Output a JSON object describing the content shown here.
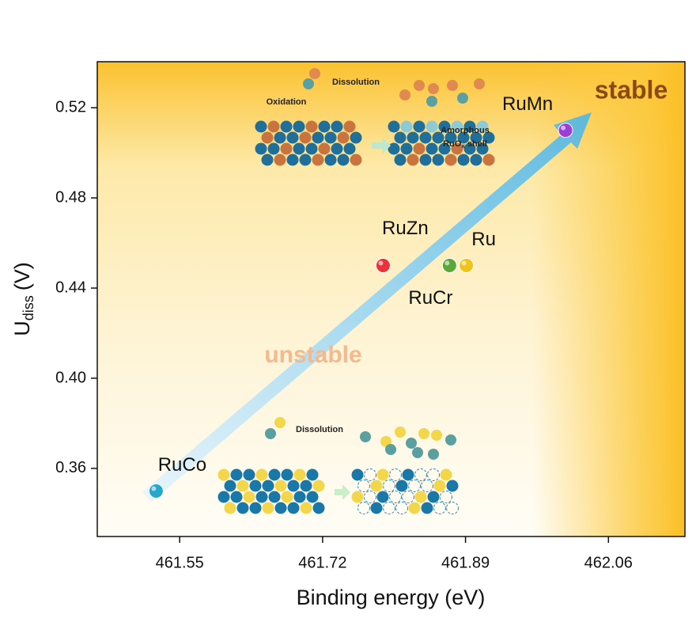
{
  "chart_data": {
    "type": "scatter",
    "xlabel": "Binding energy (eV)",
    "ylabel": "U",
    "ylabel_sub": "diss",
    "ylabel_unit": "(V)",
    "xlim": [
      461.452,
      462.151
    ],
    "ylim": [
      0.3298,
      0.5404
    ],
    "xticks": [
      461.55,
      461.72,
      461.89,
      462.06
    ],
    "yticks": [
      {
        "value": 0.36,
        "label": "0.36"
      },
      {
        "value": 0.4,
        "label": "0.40"
      },
      {
        "value": 0.44,
        "label": "0.44"
      },
      {
        "value": 0.48,
        "label": "0.48"
      },
      {
        "value": 0.52,
        "label": "0.52"
      }
    ],
    "series": [
      {
        "name": "RuCo",
        "color": "#27a6cc",
        "x": [
          461.522
        ],
        "values": [
          0.35
        ]
      },
      {
        "name": "RuZn",
        "color": "#e8323c",
        "x": [
          461.792
        ],
        "values": [
          0.45
        ]
      },
      {
        "name": "RuCr",
        "color": "#5aa83a",
        "x": [
          461.871
        ],
        "values": [
          0.45
        ]
      },
      {
        "name": "Ru",
        "color": "#f0c419",
        "x": [
          461.891
        ],
        "values": [
          0.45
        ]
      },
      {
        "name": "RuMn",
        "color": "#9b3fd8",
        "x": [
          462.009
        ],
        "values": [
          0.51
        ]
      }
    ],
    "annotations": {
      "stable": "stable",
      "unstable": "unstable",
      "top_dissolution": "Dissolution",
      "oxidation": "Oxidation",
      "amorphous": "Amorphous",
      "shell_main": "RuO",
      "shell_sub": "x",
      "shell_rest": " shell",
      "bottom_dissolution": "Dissolution"
    }
  }
}
